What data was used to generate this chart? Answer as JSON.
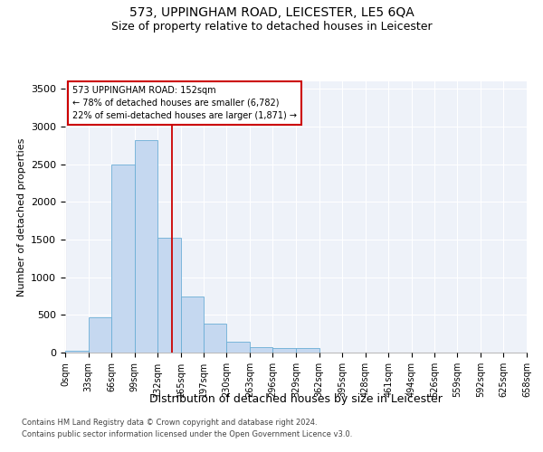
{
  "title": "573, UPPINGHAM ROAD, LEICESTER, LE5 6QA",
  "subtitle": "Size of property relative to detached houses in Leicester",
  "xlabel": "Distribution of detached houses by size in Leicester",
  "ylabel": "Number of detached properties",
  "bar_values": [
    30,
    470,
    2500,
    2820,
    1530,
    750,
    390,
    140,
    70,
    55,
    55,
    0,
    0,
    0,
    0,
    0,
    0,
    0,
    0,
    0
  ],
  "bin_edges": [
    0,
    33,
    66,
    99,
    132,
    165,
    197,
    230,
    263,
    296,
    329,
    362,
    395,
    428,
    461,
    494,
    526,
    559,
    592,
    625,
    658
  ],
  "tick_labels": [
    "0sqm",
    "33sqm",
    "66sqm",
    "99sqm",
    "132sqm",
    "165sqm",
    "197sqm",
    "230sqm",
    "263sqm",
    "296sqm",
    "329sqm",
    "362sqm",
    "395sqm",
    "428sqm",
    "461sqm",
    "494sqm",
    "526sqm",
    "559sqm",
    "592sqm",
    "625sqm",
    "658sqm"
  ],
  "bar_color": "#c5d8f0",
  "bar_edgecolor": "#6baed6",
  "vline_x": 152,
  "vline_color": "#cc0000",
  "annotation_line1": "573 UPPINGHAM ROAD: 152sqm",
  "annotation_line2": "← 78% of detached houses are smaller (6,782)",
  "annotation_line3": "22% of semi-detached houses are larger (1,871) →",
  "annotation_box_color": "#cc0000",
  "ylim": [
    0,
    3600
  ],
  "yticks": [
    0,
    500,
    1000,
    1500,
    2000,
    2500,
    3000,
    3500
  ],
  "footer_line1": "Contains HM Land Registry data © Crown copyright and database right 2024.",
  "footer_line2": "Contains public sector information licensed under the Open Government Licence v3.0.",
  "bg_color": "#eef2f9",
  "grid_color": "#ffffff",
  "title_fontsize": 10,
  "subtitle_fontsize": 9,
  "ylabel_fontsize": 8,
  "xlabel_fontsize": 9,
  "tick_fontsize": 7,
  "footer_fontsize": 6
}
